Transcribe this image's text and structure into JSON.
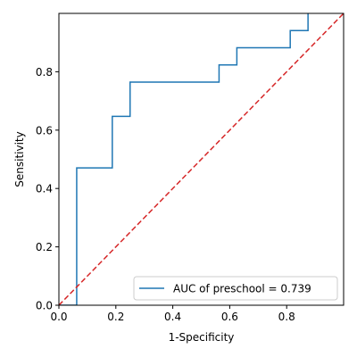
{
  "chart_data": {
    "type": "line",
    "title": "",
    "xlabel": "1-Specificity",
    "ylabel": "Sensitivity",
    "xlim": [
      0.0,
      1.0
    ],
    "ylim": [
      0.0,
      1.0
    ],
    "xticks": [
      0.0,
      0.2,
      0.4,
      0.6,
      0.8
    ],
    "yticks": [
      0.0,
      0.2,
      0.4,
      0.6,
      0.8
    ],
    "xtick_labels": [
      "0.0",
      "0.2",
      "0.4",
      "0.6",
      "0.8"
    ],
    "ytick_labels": [
      "0.0",
      "0.2",
      "0.4",
      "0.6",
      "0.8"
    ],
    "grid": false,
    "legend_position": "lower-right",
    "series": [
      {
        "name": "AUC of preschool = 0.739",
        "color": "#1f77b4",
        "style": "solid",
        "x": [
          0.0,
          0.0625,
          0.0625,
          0.1875,
          0.1875,
          0.25,
          0.25,
          0.5625,
          0.5625,
          0.625,
          0.625,
          0.8125,
          0.8125,
          0.875,
          0.875
        ],
        "y": [
          0.0,
          0.0,
          0.4706,
          0.4706,
          0.6471,
          0.6471,
          0.7647,
          0.7647,
          0.8235,
          0.8235,
          0.8824,
          0.8824,
          0.9412,
          0.9412,
          1.0
        ]
      },
      {
        "color": "#d62728",
        "style": "dashed",
        "x": [
          0.0,
          1.0
        ],
        "y": [
          0.0,
          1.0
        ]
      }
    ]
  }
}
